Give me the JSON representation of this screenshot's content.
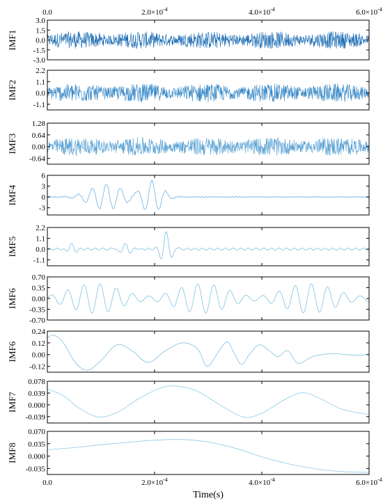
{
  "chart_data": [
    {
      "type": "line",
      "ylabel": "IMF1",
      "yticks": [
        "3.0",
        "1.5",
        "0.0",
        "-1.5",
        "-3.0"
      ],
      "ylim": [
        -3.0,
        3.0
      ],
      "xlim": [
        0,
        0.0006
      ],
      "kind": "noise",
      "amplitude": 1.3,
      "color": "#1f6fb5",
      "stroke": 0.7
    },
    {
      "type": "line",
      "ylabel": "IMF2",
      "yticks": [
        "2.2",
        "1.1",
        "0.0",
        "-1.1"
      ],
      "ylim": [
        -1.65,
        2.2
      ],
      "xlim": [
        0,
        0.0006
      ],
      "kind": "noise",
      "amplitude": 0.9,
      "color": "#3a8ac8",
      "stroke": 0.7
    },
    {
      "type": "line",
      "ylabel": "IMF3",
      "yticks": [
        "1.28",
        "0.64",
        "0.00",
        "-0.64"
      ],
      "ylim": [
        -0.96,
        1.28
      ],
      "xlim": [
        0,
        0.0006
      ],
      "kind": "noise",
      "amplitude": 0.5,
      "color": "#5aa2d4",
      "stroke": 0.7
    },
    {
      "type": "line",
      "ylabel": "IMF4",
      "yticks": [
        "6",
        "3",
        "0",
        "-3"
      ],
      "ylim": [
        -5,
        6
      ],
      "xlim": [
        0,
        0.0006
      ],
      "kind": "packets",
      "baseline_amp": 0.15,
      "baseline_freq": 160000,
      "freq": 38000,
      "packets": [
        {
          "center": 0.00011,
          "width": 3e-05,
          "amp": 3.5
        },
        {
          "center": 0.000195,
          "width": 1.8e-05,
          "amp": 4.5
        }
      ],
      "color": "#6cb0dc",
      "stroke": 0.8
    },
    {
      "type": "line",
      "ylabel": "IMF5",
      "yticks": [
        "2.2",
        "1.1",
        "0.0",
        "-1.1"
      ],
      "ylim": [
        -1.7,
        2.2
      ],
      "xlim": [
        0,
        0.0006
      ],
      "kind": "packets",
      "baseline_amp": 0.1,
      "baseline_freq": 70000,
      "freq": 45000,
      "packets": [
        {
          "center": 4.5e-05,
          "width": 8e-06,
          "amp": 0.5
        },
        {
          "center": 0.000145,
          "width": 1.2e-05,
          "amp": 0.5
        },
        {
          "center": 0.000222,
          "width": 9e-06,
          "amp": 1.8
        }
      ],
      "color": "#7bbde2",
      "stroke": 0.8
    },
    {
      "type": "line",
      "ylabel": "IMF6",
      "yticks": [
        "0.70",
        "0.35",
        "0.00",
        "-0.35",
        "-0.70"
      ],
      "ylim": [
        -0.7,
        0.7
      ],
      "xlim": [
        0,
        0.0006
      ],
      "kind": "modulated",
      "freq": 33000,
      "env_min": 0.08,
      "env_max": 0.48,
      "env_freq": 5000,
      "color": "#7fc0e2",
      "stroke": 0.8
    },
    {
      "type": "line",
      "ylabel": "IMF6",
      "yticks": [
        "0.24",
        "0.12",
        "0.00",
        "-0.12"
      ],
      "ylim": [
        -0.18,
        0.24
      ],
      "xlim": [
        0,
        0.0006
      ],
      "kind": "points",
      "x": [
        0,
        1.2e-05,
        3e-05,
        5.2e-05,
        7.5e-05,
        0.0001,
        0.00013,
        0.000158,
        0.000188,
        0.00022,
        0.000252,
        0.00028,
        0.000298,
        0.000318,
        0.000335,
        0.000348,
        0.000362,
        0.000378,
        0.000395,
        0.000412,
        0.00043,
        0.000448,
        0.000468,
        0.000495,
        0.00053,
        0.00057,
        0.0006
      ],
      "y": [
        0.17,
        0.2,
        0.12,
        -0.08,
        -0.16,
        -0.06,
        0.1,
        0.04,
        -0.08,
        0.04,
        0.12,
        0.06,
        -0.12,
        0.02,
        0.13,
        0.02,
        -0.1,
        0.01,
        0.1,
        0.05,
        -0.02,
        0.04,
        -0.09,
        -0.02,
        0.01,
        -0.005,
        0.0
      ],
      "color": "#7fc0e2",
      "stroke": 0.8
    },
    {
      "type": "line",
      "ylabel": "IMF7",
      "yticks": [
        "0.078",
        "0.039",
        "0.000",
        "-0.039"
      ],
      "ylim": [
        -0.06,
        0.078
      ],
      "xlim": [
        0,
        0.0006
      ],
      "kind": "points",
      "x": [
        0,
        3e-05,
        6e-05,
        9.5e-05,
        0.00013,
        0.00017,
        0.00021,
        0.00024,
        0.00028,
        0.00032,
        0.000365,
        0.0004,
        0.00044,
        0.000475,
        0.00051,
        0.00055,
        0.0006
      ],
      "y": [
        0.052,
        0.03,
        -0.012,
        -0.04,
        -0.025,
        0.02,
        0.055,
        0.062,
        0.045,
        0.002,
        -0.04,
        -0.028,
        0.015,
        0.04,
        0.02,
        -0.015,
        -0.032
      ],
      "color": "#8ccbe8",
      "stroke": 0.8
    },
    {
      "type": "line",
      "ylabel": "IMF8",
      "yticks": [
        "0.070",
        "0.035",
        "0.000",
        "-0.035"
      ],
      "ylim": [
        -0.052,
        0.07
      ],
      "xlim": [
        0,
        0.0006
      ],
      "kind": "points",
      "x": [
        0,
        5e-05,
        0.0001,
        0.00015,
        0.0002,
        0.00024,
        0.00028,
        0.00032,
        0.00036,
        0.0004,
        0.00045,
        0.0005,
        0.00055,
        0.0006
      ],
      "y": [
        0.018,
        0.024,
        0.032,
        0.039,
        0.045,
        0.047,
        0.044,
        0.034,
        0.018,
        -0.002,
        -0.022,
        -0.036,
        -0.044,
        -0.046
      ],
      "color": "#8ccbe8",
      "stroke": 0.8
    }
  ],
  "x_axis": {
    "label": "Time(s)",
    "ticks": [
      {
        "value": 0,
        "label": "0.0",
        "exp": ""
      },
      {
        "value": 0.0002,
        "label": "2.0×10",
        "exp": "-4"
      },
      {
        "value": 0.0004,
        "label": "4.0×10",
        "exp": "-4"
      },
      {
        "value": 0.0006,
        "label": "6.0×10",
        "exp": "-4"
      }
    ]
  }
}
